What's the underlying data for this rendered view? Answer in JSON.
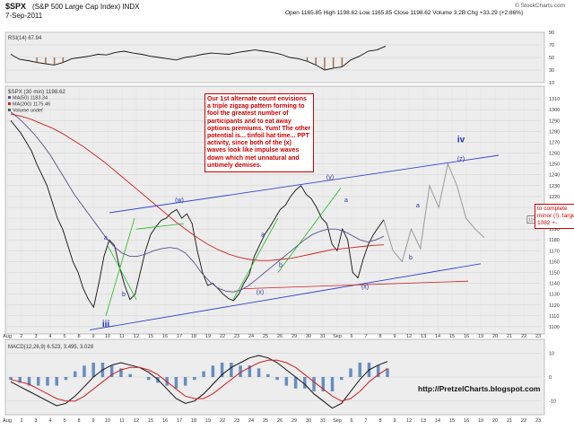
{
  "header": {
    "symbol": "$SPX",
    "description": "(S&P 500 Large Cap Index) INDX",
    "date": "7-Sep-2011",
    "ohlc": "Open 1165.85  High 1198.62  Low 1165.85  Close 1198.62  Volume 3.2B  Chg +33.29 (+2.86%)",
    "source": "© StockCharts.com"
  },
  "annotation": {
    "note": "Our 1st alternate count envisions a triple zigzag pattern forming to fool the greatest number of participants and to eat away options premiums. Yum! The other potential is... tinfoil hat time... PPT activity, since both of the (x) waves look like impulse waves down which met unnatural and untimely demises.",
    "target_note": "to complete minor (!), target 1082 +-",
    "url": "http://PretzelCharts.blogspot.com"
  },
  "chart_data": [
    {
      "type": "line",
      "title": "RSI(14) 67.94",
      "ylim": [
        10,
        90
      ],
      "ticks": [
        "90",
        "70",
        "50",
        "30",
        "10"
      ],
      "values": [
        55,
        47,
        45,
        42,
        40,
        38,
        42,
        48,
        50,
        52,
        55,
        54,
        58,
        60,
        57,
        55,
        52,
        50,
        48,
        46,
        50,
        52,
        55,
        57,
        56,
        55,
        58,
        60,
        62,
        60,
        58,
        55,
        50,
        48,
        44,
        38,
        30,
        33,
        35,
        46,
        52,
        60,
        62,
        67.94
      ]
    },
    {
      "type": "line",
      "title": "$SPX (30 min) 1198.62",
      "legend": [
        "MA(50) 1183.34",
        "MA(200) 1175.46",
        "Volume undef"
      ],
      "colors": {
        "price": "#111111",
        "ma50": "#5a4f8c",
        "ma200": "#cc2222",
        "trend": "#3344cc",
        "green": "#22bb22",
        "forecast": "#999999"
      },
      "ylim": [
        1095,
        1320
      ],
      "ticks": [
        "1310",
        "1300",
        "1290",
        "1280",
        "1270",
        "1260",
        "1250",
        "1240",
        "1230",
        "1220",
        "1210",
        "1200",
        "1190",
        "1180",
        "1170",
        "1160",
        "1150",
        "1140",
        "1130",
        "1120",
        "1110",
        "1100"
      ],
      "x_ticks": [
        "Aug",
        "2",
        "3",
        "4",
        "5",
        "8",
        "9",
        "10",
        "11",
        "12",
        "15",
        "16",
        "17",
        "18",
        "19",
        "22",
        "23",
        "24",
        "25",
        "26",
        "29",
        "30",
        "31",
        "Sep",
        "6",
        "7",
        "8",
        "9",
        "12",
        "13",
        "14",
        "15",
        "16",
        "19",
        "20",
        "21",
        "22",
        "23"
      ],
      "price": [
        1290,
        1284,
        1278,
        1270,
        1262,
        1250,
        1240,
        1230,
        1215,
        1200,
        1190,
        1175,
        1160,
        1150,
        1135,
        1125,
        1118,
        1140,
        1165,
        1180,
        1175,
        1155,
        1138,
        1125,
        1130,
        1150,
        1170,
        1185,
        1192,
        1198,
        1200,
        1205,
        1208,
        1200,
        1204,
        1195,
        1170,
        1150,
        1138,
        1140,
        1135,
        1130,
        1126,
        1124,
        1130,
        1140,
        1148,
        1165,
        1175,
        1185,
        1192,
        1200,
        1208,
        1212,
        1220,
        1226,
        1230,
        1222,
        1218,
        1210,
        1200,
        1195,
        1176,
        1170,
        1190,
        1180,
        1150,
        1145,
        1162,
        1176,
        1185,
        1192,
        1198.62
      ],
      "ma50": [
        1298,
        1292,
        1285,
        1277,
        1268,
        1258,
        1246,
        1234,
        1222,
        1212,
        1202,
        1192,
        1182,
        1174,
        1168,
        1165,
        1165,
        1167,
        1170,
        1172,
        1173,
        1172,
        1168,
        1160,
        1150,
        1142,
        1136,
        1133,
        1132,
        1134,
        1138,
        1144,
        1150,
        1156,
        1162,
        1168,
        1174,
        1180,
        1185,
        1188,
        1190,
        1190,
        1188,
        1184,
        1180,
        1178,
        1180,
        1183.34
      ],
      "ma200": [
        1296,
        1294,
        1291,
        1287,
        1283,
        1278,
        1272,
        1266,
        1259,
        1252,
        1244,
        1236,
        1228,
        1220,
        1212,
        1204,
        1196,
        1189,
        1182,
        1176,
        1171,
        1167,
        1164,
        1162,
        1161,
        1161,
        1162,
        1163,
        1165,
        1167,
        1169,
        1171,
        1172,
        1173,
        1174,
        1175,
        1175.46
      ],
      "forecast": [
        1198,
        1170,
        1160,
        1190,
        1172,
        1230,
        1210,
        1250,
        1230,
        1200,
        1190,
        1182
      ],
      "wave_labels": [
        "a",
        "b",
        "(w)",
        "(x)",
        "a",
        "b",
        "(y)",
        "(x)",
        "a",
        "b",
        "a",
        "(z)",
        "iv",
        "iii"
      ]
    },
    {
      "type": "line",
      "title": "MACD(12,26,9) 6.523, 3.495, 3.028",
      "ylim": [
        -15,
        15
      ],
      "x_ticks": [
        "Aug",
        "2",
        "3",
        "4",
        "5",
        "8",
        "9",
        "10",
        "11",
        "12",
        "15",
        "16",
        "17",
        "18",
        "19",
        "22",
        "23",
        "24",
        "25",
        "26",
        "29",
        "30",
        "31",
        "Sep",
        "6",
        "7",
        "8",
        "9",
        "12",
        "13",
        "14",
        "15",
        "16",
        "19",
        "20",
        "21",
        "22",
        "23"
      ],
      "macd": [
        -2,
        -4,
        -6,
        -8,
        -10,
        -12,
        -11,
        -8,
        -4,
        0,
        3,
        5,
        6,
        5,
        4,
        2,
        -1,
        -5,
        -9,
        -11,
        -10,
        -7,
        -3,
        1,
        4,
        6,
        8,
        9,
        8,
        6,
        3,
        0,
        -3,
        -7,
        -10,
        -13,
        -11,
        -6,
        -1,
        3,
        5,
        6.5
      ],
      "signal": [
        -1,
        -2,
        -3,
        -5,
        -7,
        -9,
        -10,
        -10,
        -8,
        -5,
        -2,
        1,
        3,
        4,
        4,
        3,
        1,
        -2,
        -5,
        -8,
        -9,
        -9,
        -7,
        -4,
        -1,
        2,
        4,
        6,
        7,
        7,
        6,
        4,
        1,
        -2,
        -5,
        -8,
        -10,
        -9,
        -6,
        -2,
        1,
        3.5
      ]
    }
  ]
}
